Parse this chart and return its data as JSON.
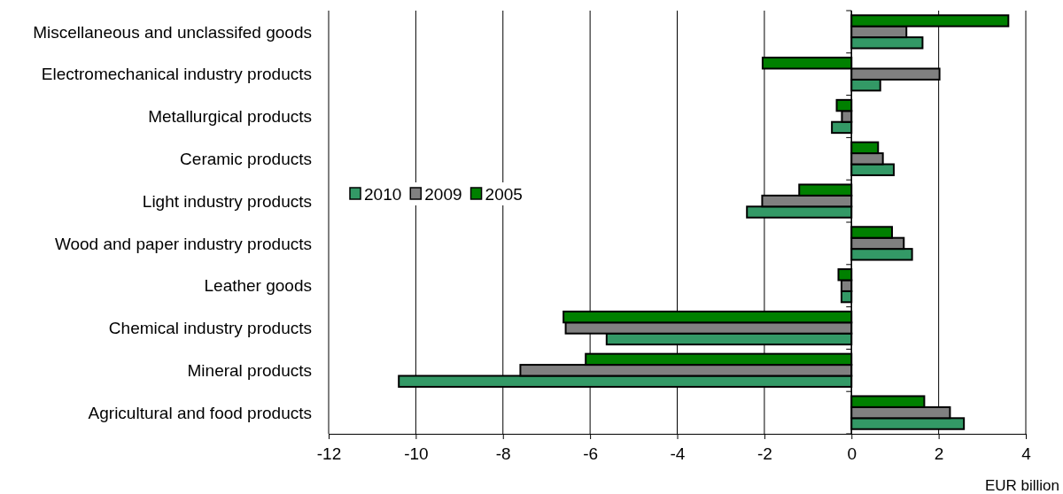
{
  "chart_data": {
    "type": "bar",
    "orientation": "horizontal",
    "xlabel": "EUR billion",
    "categories": [
      "Miscellaneous and unclassifed goods",
      "Electromechanical industry products",
      "Metallurgical products",
      "Ceramic products",
      "Light industry products",
      "Wood and paper industry products",
      "Leather goods",
      "Chemical industry products",
      "Mineral products",
      "Agricultural and food products"
    ],
    "series": [
      {
        "name": "2010",
        "color": "#339966",
        "values": [
          1.63,
          0.66,
          -0.45,
          0.97,
          -2.4,
          1.39,
          -0.23,
          -5.62,
          -10.39,
          2.58
        ]
      },
      {
        "name": "2009",
        "color": "#808080",
        "values": [
          1.26,
          2.02,
          -0.22,
          0.72,
          -2.05,
          1.2,
          -0.23,
          -6.56,
          -7.6,
          2.26
        ]
      },
      {
        "name": "2005",
        "color": "#008000",
        "values": [
          3.6,
          -2.04,
          -0.34,
          0.61,
          -1.2,
          0.93,
          -0.3,
          -6.61,
          -6.1,
          1.67
        ]
      }
    ],
    "xlim": [
      -12,
      4
    ],
    "xticks": [
      -12,
      -10,
      -8,
      -6,
      -4,
      -2,
      0,
      2,
      4
    ],
    "grid": "x",
    "legend": "left"
  }
}
